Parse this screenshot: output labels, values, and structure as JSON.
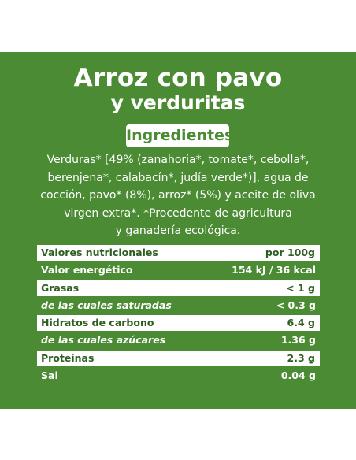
{
  "product": {
    "title_line1": "Arroz con pavo",
    "title_line2": "y verduritas"
  },
  "ingredients": {
    "heading": "Ingredientes",
    "lines": [
      "Verduras* [49% (zanahoria*, tomate*, cebolla*,",
      "berenjena*, calabacín*, judía verde*)], agua de",
      "cocción, pavo* (8%), arroz* (5%) y aceite de oliva",
      "virgen extra*. *Procedente de agricultura",
      "y ganadería ecológica."
    ]
  },
  "nutrition": {
    "rows": [
      {
        "label": "Valores nutricionales",
        "value": "por 100g"
      },
      {
        "label": "Valor energético",
        "value": "154 kJ / 36 kcal"
      },
      {
        "label": "Grasas",
        "value": "< 1 g"
      },
      {
        "label": "de las cuales saturadas",
        "value": "< 0.3 g"
      },
      {
        "label": "Hidratos de carbono",
        "value": "6.4 g"
      },
      {
        "label": "de las cuales azúcares",
        "value": "1.36 g"
      },
      {
        "label": "Proteínas",
        "value": "2.3 g"
      },
      {
        "label": "Sal",
        "value": "0.04 g"
      }
    ]
  },
  "colors": {
    "panel_green": "#4a8b33",
    "text_dark_green": "#2e5f22",
    "white": "#ffffff"
  }
}
